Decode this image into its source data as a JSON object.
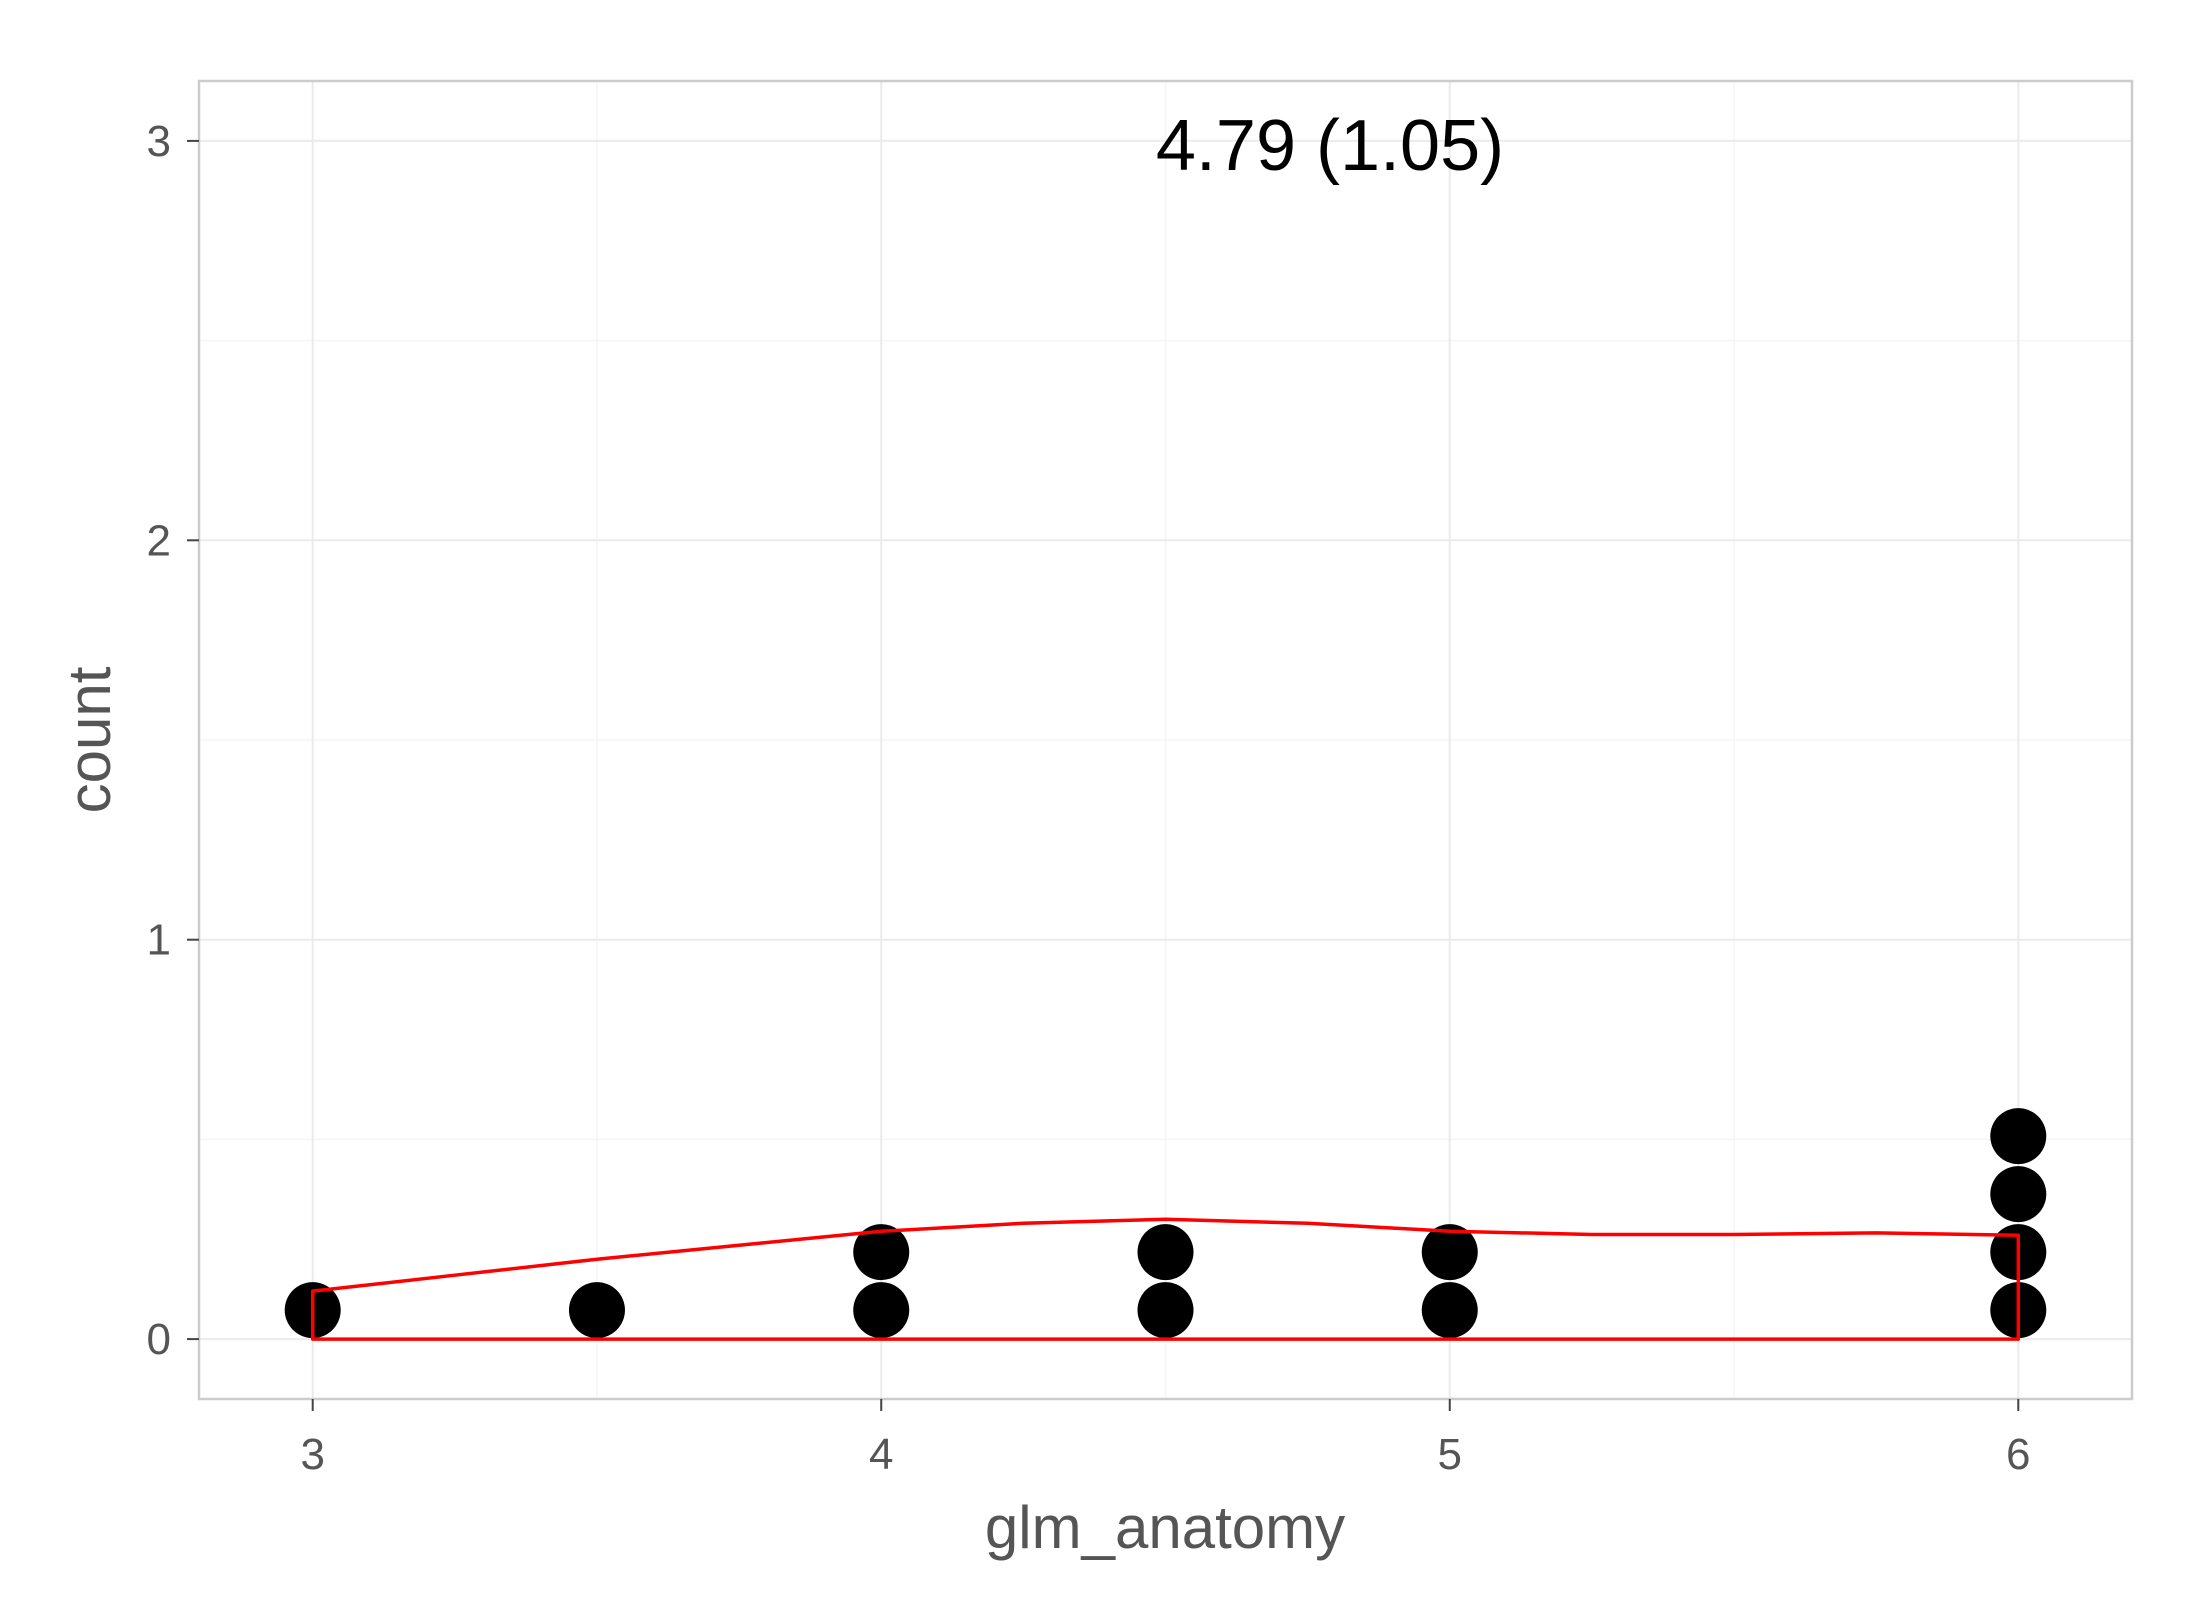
{
  "chart_data": {
    "type": "dotplot",
    "annotation": "4.79 (1.05)",
    "xlabel": "glm_anatomy",
    "ylabel": "count",
    "xlim": [
      2.8,
      6.2
    ],
    "ylim": [
      -0.15,
      3.15
    ],
    "x_ticks": [
      3,
      4,
      5,
      6
    ],
    "x_tick_labels": [
      "3",
      "4",
      "5",
      "6"
    ],
    "y_ticks": [
      0,
      1,
      2,
      3
    ],
    "y_tick_labels": [
      "0",
      "1",
      "2",
      "3"
    ],
    "grid": true,
    "dot_binwidth": 0.1,
    "dots": {
      "x": [
        3,
        3.5,
        4,
        4.5,
        5,
        6
      ],
      "counts": [
        1,
        1,
        2,
        2,
        2,
        4
      ]
    },
    "density_curve": {
      "x": [
        3.0,
        3.25,
        3.5,
        3.75,
        4.0,
        4.25,
        4.5,
        4.75,
        5.0,
        5.25,
        5.5,
        5.75,
        6.0
      ],
      "y": [
        0.12,
        0.16,
        0.2,
        0.235,
        0.27,
        0.29,
        0.3,
        0.29,
        0.27,
        0.262,
        0.262,
        0.266,
        0.26
      ]
    },
    "colors": {
      "dots": "#000000",
      "density": "#ff0000",
      "grid": "#ebebeb",
      "panel_border": "#cccccc",
      "axis_text": "#555555"
    }
  }
}
